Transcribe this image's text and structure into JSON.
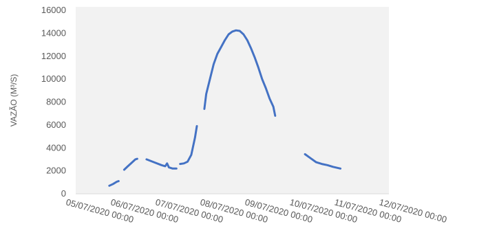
{
  "chart_data": {
    "type": "line",
    "title": "",
    "xlabel": "",
    "ylabel": "VAZÃO (M³/S)",
    "ylim": [
      0,
      16000
    ],
    "y_ticks": [
      0,
      2000,
      4000,
      6000,
      8000,
      10000,
      12000,
      14000,
      16000
    ],
    "x_ticks": [
      "05/07/2020 00:00",
      "06/07/2020 00:00",
      "07/07/2020 00:00",
      "08/07/2020 00:00",
      "09/07/2020 00:00",
      "10/07/2020 00:00",
      "11/07/2020 00:00",
      "12/07/2020 00:00"
    ],
    "grid": false,
    "legend": "none",
    "series_color": "#4472c4",
    "plot_background": "#f2f2f2",
    "series": [
      {
        "segments": [
          [
            {
              "x": "05/07/2020 18:00",
              "y": 700
            },
            {
              "x": "05/07/2020 20:00",
              "y": 850
            },
            {
              "x": "05/07/2020 22:00",
              "y": 1050
            },
            {
              "x": "05/07/2020 23:00",
              "y": 1100
            }
          ],
          [
            {
              "x": "06/07/2020 02:00",
              "y": 2100
            },
            {
              "x": "06/07/2020 04:00",
              "y": 2400
            },
            {
              "x": "06/07/2020 06:00",
              "y": 2700
            },
            {
              "x": "06/07/2020 08:00",
              "y": 3000
            },
            {
              "x": "06/07/2020 09:00",
              "y": 3050
            }
          ],
          [
            {
              "x": "06/07/2020 14:00",
              "y": 3000
            },
            {
              "x": "06/07/2020 18:00",
              "y": 2750
            },
            {
              "x": "06/07/2020 22:00",
              "y": 2500
            },
            {
              "x": "07/07/2020 00:00",
              "y": 2400
            },
            {
              "x": "07/07/2020 01:00",
              "y": 2650
            },
            {
              "x": "07/07/2020 02:00",
              "y": 2300
            },
            {
              "x": "07/07/2020 04:00",
              "y": 2200
            },
            {
              "x": "07/07/2020 06:00",
              "y": 2200
            }
          ],
          [
            {
              "x": "07/07/2020 08:00",
              "y": 2600
            },
            {
              "x": "07/07/2020 10:00",
              "y": 2650
            },
            {
              "x": "07/07/2020 12:00",
              "y": 2800
            },
            {
              "x": "07/07/2020 14:00",
              "y": 3400
            },
            {
              "x": "07/07/2020 16:00",
              "y": 4900
            },
            {
              "x": "07/07/2020 17:00",
              "y": 5900
            }
          ],
          [
            {
              "x": "07/07/2020 21:00",
              "y": 7400
            },
            {
              "x": "07/07/2020 22:00",
              "y": 8700
            },
            {
              "x": "08/07/2020 00:00",
              "y": 10000
            },
            {
              "x": "08/07/2020 02:00",
              "y": 11300
            },
            {
              "x": "08/07/2020 04:00",
              "y": 12200
            },
            {
              "x": "08/07/2020 06:00",
              "y": 12800
            },
            {
              "x": "08/07/2020 08:00",
              "y": 13400
            },
            {
              "x": "08/07/2020 10:00",
              "y": 13900
            },
            {
              "x": "08/07/2020 12:00",
              "y": 14150
            },
            {
              "x": "08/07/2020 14:00",
              "y": 14250
            },
            {
              "x": "08/07/2020 16:00",
              "y": 14200
            },
            {
              "x": "08/07/2020 18:00",
              "y": 13900
            },
            {
              "x": "08/07/2020 20:00",
              "y": 13400
            },
            {
              "x": "08/07/2020 22:00",
              "y": 12700
            },
            {
              "x": "09/07/2020 00:00",
              "y": 11900
            },
            {
              "x": "09/07/2020 02:00",
              "y": 11000
            },
            {
              "x": "09/07/2020 04:00",
              "y": 10000
            },
            {
              "x": "09/07/2020 06:00",
              "y": 9200
            },
            {
              "x": "09/07/2020 08:00",
              "y": 8300
            },
            {
              "x": "09/07/2020 10:00",
              "y": 7600
            },
            {
              "x": "09/07/2020 11:00",
              "y": 6800
            }
          ],
          [
            {
              "x": "10/07/2020 03:00",
              "y": 3450
            },
            {
              "x": "10/07/2020 06:00",
              "y": 3100
            },
            {
              "x": "10/07/2020 09:00",
              "y": 2750
            },
            {
              "x": "10/07/2020 12:00",
              "y": 2600
            },
            {
              "x": "10/07/2020 15:00",
              "y": 2500
            },
            {
              "x": "10/07/2020 18:00",
              "y": 2350
            },
            {
              "x": "10/07/2020 22:00",
              "y": 2200
            }
          ]
        ]
      }
    ]
  }
}
